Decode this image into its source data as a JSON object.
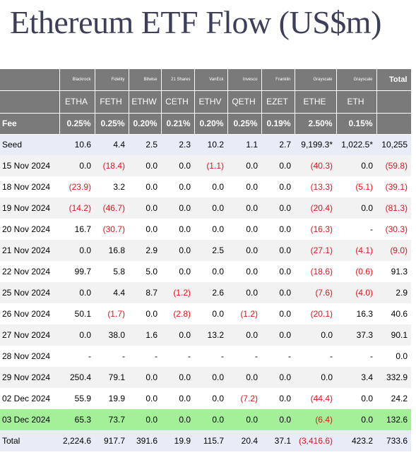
{
  "title": "Ethereum ETF Flow (US$m)",
  "header": {
    "issuers": [
      "Blackrock",
      "Fidelity",
      "Bitwise",
      "21 Shares",
      "VanEck",
      "Invesco",
      "Franklin",
      "Grayscale",
      "Grayscale"
    ],
    "total_label": "Total",
    "tickers": [
      "ETHA",
      "FETH",
      "ETHW",
      "CETH",
      "ETHV",
      "QETH",
      "EZET",
      "ETHE",
      "ETH"
    ],
    "fee_label": "Fee",
    "fees": [
      "0.25%",
      "0.25%",
      "0.20%",
      "0.21%",
      "0.20%",
      "0.25%",
      "0.19%",
      "2.50%",
      "0.15%"
    ]
  },
  "rows": [
    {
      "label": "Seed",
      "values": [
        "10.6",
        "4.4",
        "2.5",
        "2.3",
        "10.2",
        "1.1",
        "2.7",
        "9,199.3*",
        "1,022.5*",
        "10,255"
      ]
    },
    {
      "label": "15 Nov 2024",
      "values": [
        "0.0",
        "(18.4)",
        "0.0",
        "0.0",
        "(1.1)",
        "0.0",
        "0.0",
        "(40.3)",
        "0.0",
        "(59.8)"
      ]
    },
    {
      "label": "18 Nov 2024",
      "values": [
        "(23.9)",
        "3.2",
        "0.0",
        "0.0",
        "0.0",
        "0.0",
        "0.0",
        "(13.3)",
        "(5.1)",
        "(39.1)"
      ]
    },
    {
      "label": "19 Nov 2024",
      "values": [
        "(14.2)",
        "(46.7)",
        "0.0",
        "0.0",
        "0.0",
        "0.0",
        "0.0",
        "(20.4)",
        "0.0",
        "(81.3)"
      ]
    },
    {
      "label": "20 Nov 2024",
      "values": [
        "16.7",
        "(30.7)",
        "0.0",
        "0.0",
        "0.0",
        "0.0",
        "0.0",
        "(16.3)",
        "-",
        "(30.3)"
      ]
    },
    {
      "label": "21 Nov 2024",
      "values": [
        "0.0",
        "16.8",
        "2.9",
        "0.0",
        "2.5",
        "0.0",
        "0.0",
        "(27.1)",
        "(4.1)",
        "(9.0)"
      ]
    },
    {
      "label": "22 Nov 2024",
      "values": [
        "99.7",
        "5.8",
        "5.0",
        "0.0",
        "0.0",
        "0.0",
        "0.0",
        "(18.6)",
        "(0.6)",
        "91.3"
      ]
    },
    {
      "label": "25 Nov 2024",
      "values": [
        "0.0",
        "4.4",
        "8.7",
        "(1.2)",
        "2.6",
        "0.0",
        "0.0",
        "(7.6)",
        "(4.0)",
        "2.9"
      ]
    },
    {
      "label": "26 Nov 2024",
      "values": [
        "50.1",
        "(1.7)",
        "0.0",
        "(2.8)",
        "0.0",
        "(1.2)",
        "0.0",
        "(20.1)",
        "16.3",
        "40.6"
      ]
    },
    {
      "label": "27 Nov 2024",
      "values": [
        "0.0",
        "38.0",
        "1.6",
        "0.0",
        "13.2",
        "0.0",
        "0.0",
        "0.0",
        "37.3",
        "90.1"
      ]
    },
    {
      "label": "28 Nov 2024",
      "values": [
        "-",
        "-",
        "-",
        "-",
        "-",
        "-",
        "-",
        "-",
        "-",
        "0.0"
      ]
    },
    {
      "label": "29 Nov 2024",
      "values": [
        "250.4",
        "79.1",
        "0.0",
        "0.0",
        "0.0",
        "0.0",
        "0.0",
        "0.0",
        "3.4",
        "332.9"
      ]
    },
    {
      "label": "02 Dec 2024",
      "values": [
        "55.9",
        "19.9",
        "0.0",
        "0.0",
        "0.0",
        "(7.2)",
        "0.0",
        "(44.4)",
        "0.0",
        "24.2"
      ]
    },
    {
      "label": "03 Dec 2024",
      "values": [
        "65.3",
        "73.7",
        "0.0",
        "0.0",
        "0.0",
        "0.0",
        "0.0",
        "(6.4)",
        "0.0",
        "132.6"
      ]
    },
    {
      "label": "Total",
      "values": [
        "2,224.6",
        "917.7",
        "391.6",
        "19.9",
        "115.7",
        "20.4",
        "37.1",
        "(3,416.6)",
        "423.2",
        "733.6"
      ]
    }
  ],
  "colors": {
    "header_bg": "#7a7a7a",
    "negative": "#e0141a",
    "highlight_row": "#a3f099",
    "seed_total_row": "#e8ecf6",
    "stripe": "#f2f2f2"
  }
}
